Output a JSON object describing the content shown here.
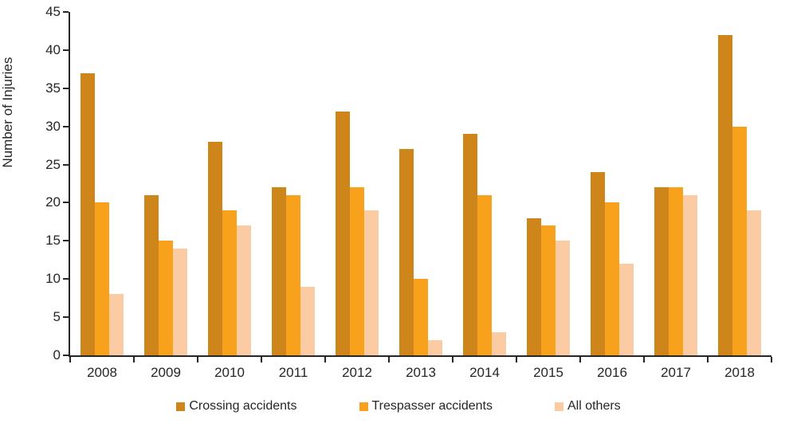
{
  "chart_data": {
    "type": "bar",
    "title": "",
    "xlabel": "",
    "ylabel": "Number of Injuries",
    "ylim": [
      0,
      45
    ],
    "y_ticks": [
      0,
      5,
      10,
      15,
      20,
      25,
      30,
      35,
      40,
      45
    ],
    "grid": false,
    "legend_position": "bottom",
    "categories": [
      "2008",
      "2009",
      "2010",
      "2011",
      "2012",
      "2013",
      "2014",
      "2015",
      "2016",
      "2017",
      "2018"
    ],
    "series": [
      {
        "name": "Crossing accidents",
        "color": "#CE861B",
        "values": [
          37,
          21,
          28,
          22,
          32,
          27,
          29,
          18,
          24,
          22,
          42
        ]
      },
      {
        "name": "Trespasser accidents",
        "color": "#F8A11D",
        "values": [
          20,
          15,
          19,
          21,
          22,
          10,
          21,
          17,
          20,
          22,
          30
        ]
      },
      {
        "name": "All others",
        "color": "#FBCBA4",
        "values": [
          8,
          14,
          17,
          9,
          19,
          2,
          3,
          15,
          12,
          21,
          19
        ]
      }
    ],
    "axis_color": "#262626"
  }
}
